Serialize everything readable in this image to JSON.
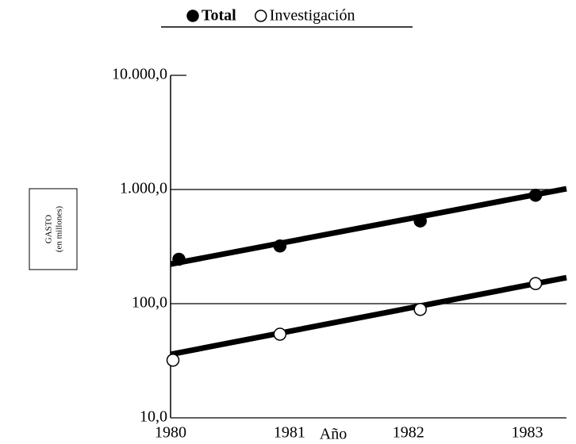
{
  "chart_data": {
    "type": "line",
    "log_y": true,
    "x_label": "Año",
    "y_label": "GASTO",
    "y_label_sub": "(en millones)",
    "xlim": [
      1980,
      1983.33
    ],
    "xticks": [
      1980,
      1981,
      1982,
      1983
    ],
    "ylim": [
      10,
      10000
    ],
    "yticks": [
      {
        "value": 10,
        "label": "10,0"
      },
      {
        "value": 100,
        "label": "100,0"
      },
      {
        "value": 1000,
        "label": "1.000,0"
      },
      {
        "value": 10000,
        "label": "10.000,0"
      }
    ],
    "grid": true,
    "series": [
      {
        "name": "Total",
        "color": "#000",
        "marker": "filled",
        "x": [
          1980.07,
          1980.92,
          1982.1,
          1983.07
        ],
        "values": [
          245,
          320,
          530,
          890
        ],
        "trend": {
          "x": [
            1980,
            1983.33
          ],
          "values": [
            222,
            1016
          ]
        }
      },
      {
        "name": "Investigación",
        "color": "#000",
        "marker": "open",
        "x": [
          1980.02,
          1980.92,
          1982.1,
          1983.07
        ],
        "values": [
          32,
          54,
          89,
          150
        ],
        "trend": {
          "x": [
            1980,
            1983.33
          ],
          "values": [
            36,
            169
          ]
        }
      }
    ]
  }
}
